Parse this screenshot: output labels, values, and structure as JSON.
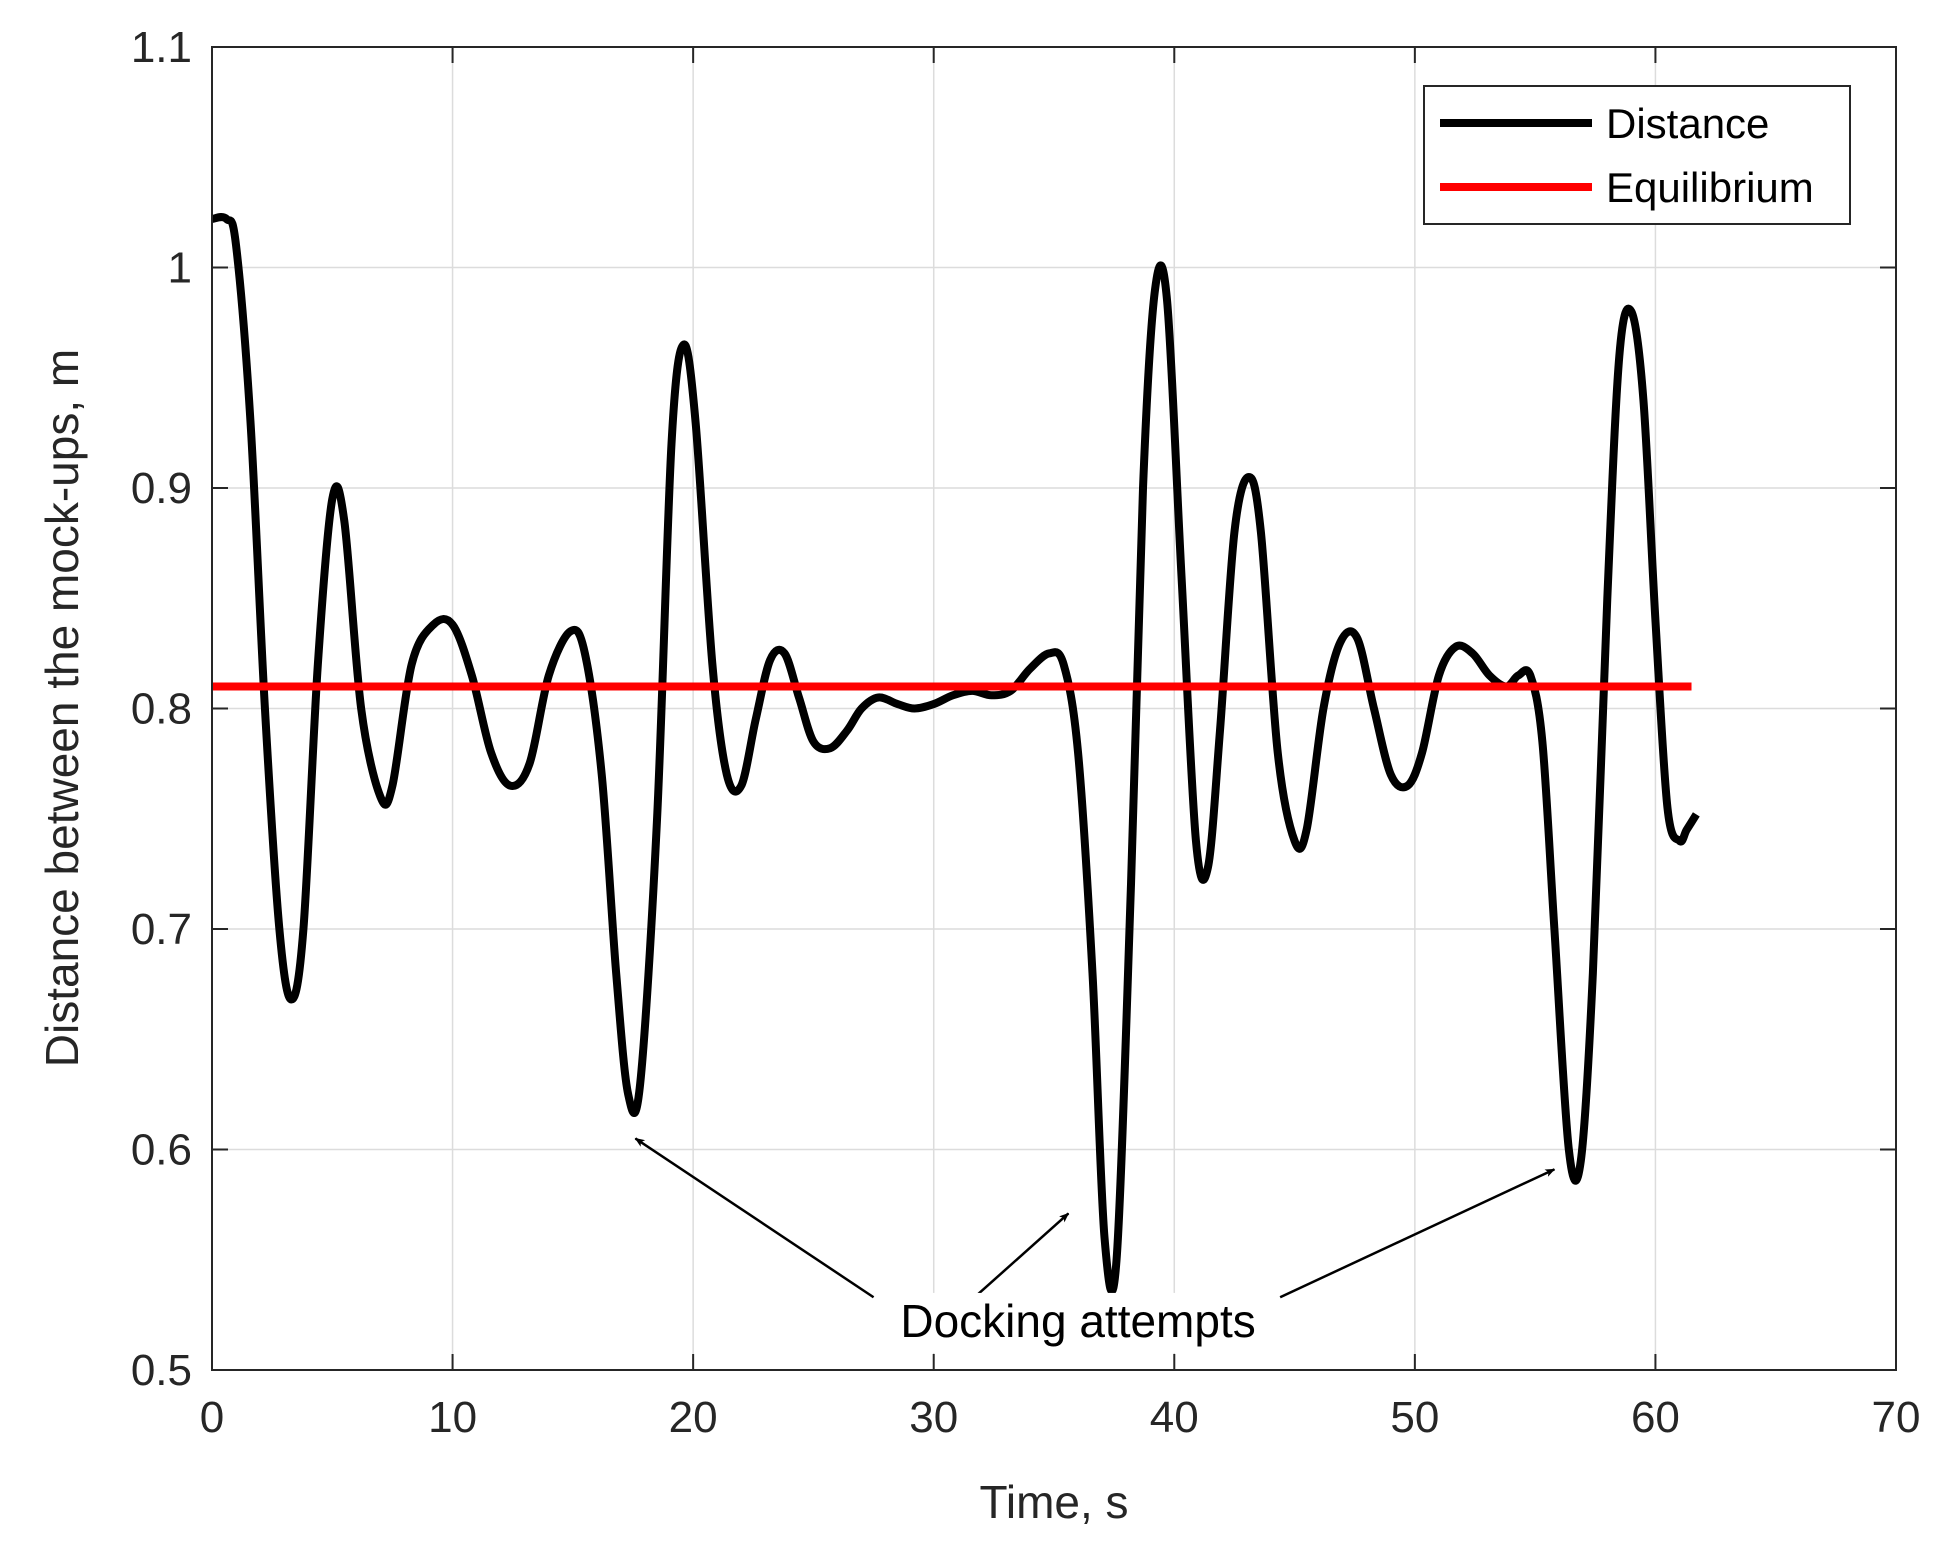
{
  "chart_data": {
    "type": "line",
    "title": "",
    "xlabel": "Time, s",
    "ylabel": "Distance between the mock-ups, m",
    "xlim": [
      0,
      70
    ],
    "ylim": [
      0.5,
      1.1
    ],
    "xticks": [
      0,
      10,
      20,
      30,
      40,
      50,
      60,
      70
    ],
    "yticks": [
      0.5,
      0.6,
      0.7,
      0.8,
      0.9,
      1.0,
      1.1
    ],
    "xtick_labels": [
      "0",
      "10",
      "20",
      "30",
      "40",
      "50",
      "60",
      "70"
    ],
    "ytick_labels": [
      "0.5",
      "0.6",
      "0.7",
      "0.8",
      "0.9",
      "1",
      "1.1"
    ],
    "grid": true,
    "legend_position": "top-right",
    "series": [
      {
        "name": "Distance",
        "color": "#000000",
        "x": [
          0,
          0.6,
          1.0,
          1.6,
          2.2,
          2.8,
          3.3,
          3.8,
          4.4,
          5.0,
          5.5,
          6.2,
          7.0,
          7.5,
          8.3,
          9.2,
          10.0,
          10.8,
          11.6,
          12.4,
          13.2,
          14.0,
          14.9,
          15.5,
          16.2,
          16.8,
          17.3,
          17.8,
          18.5,
          19.1,
          19.6,
          20.1,
          20.8,
          21.4,
          22.0,
          22.6,
          23.2,
          23.8,
          24.4,
          25.0,
          25.7,
          26.4,
          27.0,
          27.7,
          28.5,
          29.2,
          30.0,
          30.8,
          31.6,
          32.4,
          33.2,
          34.0,
          34.8,
          35.4,
          36.0,
          36.6,
          37.1,
          37.6,
          38.2,
          38.7,
          39.2,
          39.7,
          40.3,
          40.9,
          41.4,
          41.9,
          42.5,
          43.1,
          43.6,
          44.3,
          45.0,
          45.5,
          46.2,
          46.9,
          47.6,
          48.3,
          49.0,
          49.7,
          50.3,
          51.0,
          51.7,
          52.4,
          53.1,
          53.8,
          54.3,
          54.8,
          55.3,
          55.8,
          56.4,
          56.9,
          57.4,
          58.0,
          58.5,
          59.0,
          59.5,
          60.0,
          60.5,
          61.0,
          61.3,
          61.7
        ],
        "y": [
          1.022,
          1.022,
          1.01,
          0.93,
          0.8,
          0.7,
          0.668,
          0.7,
          0.82,
          0.895,
          0.885,
          0.8,
          0.76,
          0.765,
          0.82,
          0.838,
          0.838,
          0.815,
          0.78,
          0.765,
          0.775,
          0.815,
          0.835,
          0.825,
          0.77,
          0.68,
          0.625,
          0.63,
          0.75,
          0.92,
          0.965,
          0.93,
          0.82,
          0.77,
          0.765,
          0.795,
          0.822,
          0.825,
          0.805,
          0.785,
          0.782,
          0.79,
          0.8,
          0.805,
          0.802,
          0.8,
          0.802,
          0.806,
          0.808,
          0.806,
          0.808,
          0.818,
          0.825,
          0.82,
          0.78,
          0.68,
          0.56,
          0.55,
          0.72,
          0.9,
          0.99,
          0.985,
          0.86,
          0.74,
          0.728,
          0.79,
          0.88,
          0.905,
          0.88,
          0.78,
          0.74,
          0.745,
          0.8,
          0.83,
          0.832,
          0.8,
          0.77,
          0.765,
          0.78,
          0.815,
          0.828,
          0.825,
          0.815,
          0.81,
          0.815,
          0.815,
          0.785,
          0.7,
          0.6,
          0.595,
          0.68,
          0.85,
          0.96,
          0.98,
          0.94,
          0.84,
          0.755,
          0.74,
          0.745,
          0.752
        ]
      },
      {
        "name": "Equilibrium",
        "color": "#ff0000",
        "x": [
          0,
          61.5
        ],
        "y": [
          0.81,
          0.81
        ]
      }
    ],
    "annotations": [
      {
        "text": "Docking attempts",
        "text_at": [
          36,
          0.515
        ],
        "arrows": [
          {
            "from": [
              27.5,
              0.533
            ],
            "to": [
              17.6,
              0.605
            ]
          },
          {
            "from": [
              31.7,
              0.533
            ],
            "to": [
              35.6,
              0.571
            ]
          },
          {
            "from": [
              44.4,
              0.533
            ],
            "to": [
              55.8,
              0.591
            ]
          }
        ]
      }
    ]
  }
}
